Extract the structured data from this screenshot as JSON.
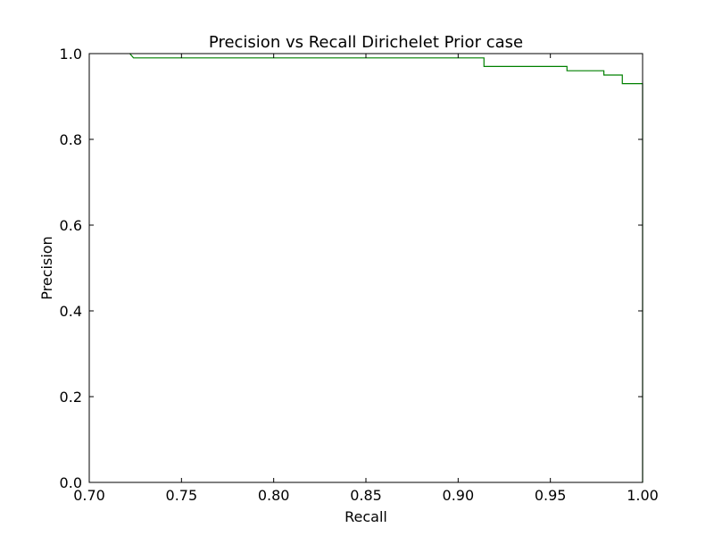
{
  "chart_data": {
    "type": "line",
    "title": "Precision vs Recall Dirichelet Prior case",
    "xlabel": "Recall",
    "ylabel": "Precision",
    "xlim": [
      0.7,
      1.0
    ],
    "ylim": [
      0.0,
      1.0
    ],
    "grid": false,
    "x_ticks": [
      "0.70",
      "0.75",
      "0.80",
      "0.85",
      "0.90",
      "0.95",
      "1.00"
    ],
    "y_ticks": [
      "0.0",
      "0.2",
      "0.4",
      "0.6",
      "0.8",
      "1.0"
    ],
    "series": [
      {
        "color": "#008000",
        "x": [
          0.722,
          0.724,
          0.914,
          0.914,
          0.959,
          0.959,
          0.979,
          0.979,
          0.989,
          0.989,
          1.0,
          1.0
        ],
        "y": [
          1.0,
          0.99,
          0.99,
          0.97,
          0.97,
          0.96,
          0.96,
          0.95,
          0.95,
          0.93,
          0.93,
          0.0
        ]
      }
    ]
  }
}
